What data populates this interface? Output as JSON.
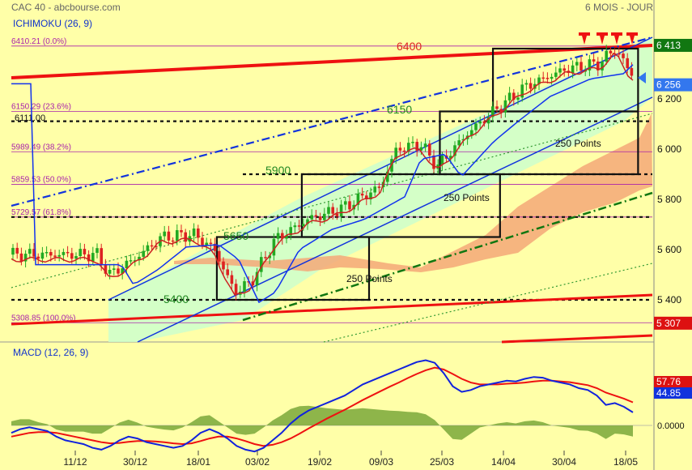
{
  "header": {
    "title": "CAC 40 - abcbourse.com",
    "period": "6 MOIS - JOUR"
  },
  "colors": {
    "background": "#ffffa8",
    "cloud": "#f4a878",
    "channel": "#ccffcc",
    "up": "#22aa22",
    "down": "#dd2222",
    "price_box": "#1133dd"
  },
  "chart_data": [
    {
      "type": "candlestick",
      "indicator_label": "ICHIMOKU (26, 9)",
      "price_scale_ticks": [
        "6 200",
        "6 000",
        "5 800",
        "5 600",
        "5 400"
      ],
      "price_tick_values": [
        6200,
        6000,
        5800,
        5600,
        5400
      ],
      "price_tags": [
        {
          "label": "6 413",
          "value": 6413,
          "color": "#117711"
        },
        {
          "label": "6 256",
          "value": 6256,
          "color": "#3377ee"
        },
        {
          "label": "5 307",
          "value": 5307,
          "color": "#dd1111"
        }
      ],
      "fibonacci_levels": [
        {
          "label": "6410.21 (0.0%)",
          "value": 6410.21
        },
        {
          "label": "6150.29 (23.6%)",
          "value": 6150.29
        },
        {
          "label": "5989.49 (38.2%)",
          "value": 5989.49
        },
        {
          "label": "5859.53 (50.0%)",
          "value": 5859.53
        },
        {
          "label": "5729.57 (61.8%)",
          "value": 5729.57
        },
        {
          "label": "5308.85 (100.0%)",
          "value": 5308.85
        }
      ],
      "level_annotations": [
        {
          "label": "6400",
          "value": 6400
        },
        {
          "label": "6150",
          "value": 6150
        },
        {
          "label": "5900",
          "value": 5900
        },
        {
          "label": "5650",
          "value": 5650
        },
        {
          "label": "5400",
          "value": 5400
        },
        {
          "label": "6111.00",
          "value": 6111
        }
      ],
      "boxes_label": "250 Points",
      "boxes": [
        {
          "start": "2025-01-20",
          "end": "2025-03-04",
          "low": 5400,
          "high": 5650
        },
        {
          "start": "2025-02-13",
          "end": "2025-04-10",
          "low": 5650,
          "high": 5900
        },
        {
          "start": "2025-03-24",
          "end": "2025-05-19",
          "low": 5900,
          "high": 6150
        },
        {
          "start": "2025-04-08",
          "end": "2025-05-19",
          "low": 6150,
          "high": 6400
        }
      ],
      "x_ticks": [
        "11/12",
        "30/12",
        "18/01",
        "03/02",
        "19/02",
        "09/03",
        "25/03",
        "14/04",
        "30/04",
        "18/05"
      ]
    },
    {
      "type": "line",
      "indicator_label": "MACD (12, 26, 9)",
      "zero_label": "0.0000",
      "tags": [
        {
          "label": "57.76",
          "value": 57.76,
          "color": "#dd1111"
        },
        {
          "label": "44.85",
          "value": 44.85,
          "color": "#1133dd"
        }
      ],
      "series": [
        {
          "values": [
            -20,
            -10,
            -5,
            -10,
            -15,
            -30,
            -40,
            -45,
            -50,
            -60,
            -65,
            -55,
            -40,
            -30,
            -35,
            -45,
            -50,
            -55,
            -60,
            -55,
            -40,
            -20,
            -10,
            -20,
            -35,
            -55,
            -65,
            -70,
            -60,
            -40,
            -20,
            5,
            25,
            40,
            50,
            60,
            70,
            80,
            95,
            110,
            120,
            130,
            140,
            150,
            160,
            170,
            175,
            168,
            140,
            105,
            90,
            95,
            105,
            110,
            115,
            120,
            118,
            125,
            130,
            128,
            120,
            115,
            110,
            100,
            95,
            80,
            55,
            60,
            50,
            35
          ]
        },
        {
          "values": [
            -30,
            -25,
            -20,
            -18,
            -18,
            -20,
            -25,
            -30,
            -35,
            -40,
            -45,
            -48,
            -47,
            -44,
            -42,
            -42,
            -43,
            -45,
            -48,
            -50,
            -48,
            -42,
            -35,
            -30,
            -30,
            -35,
            -42,
            -50,
            -55,
            -52,
            -45,
            -35,
            -22,
            -8,
            5,
            18,
            30,
            42,
            55,
            68,
            80,
            92,
            104,
            115,
            127,
            138,
            148,
            155,
            150,
            138,
            125,
            115,
            110,
            110,
            110,
            112,
            113,
            115,
            118,
            120,
            120,
            118,
            116,
            112,
            108,
            100,
            88,
            80,
            72,
            62
          ]
        }
      ]
    }
  ]
}
